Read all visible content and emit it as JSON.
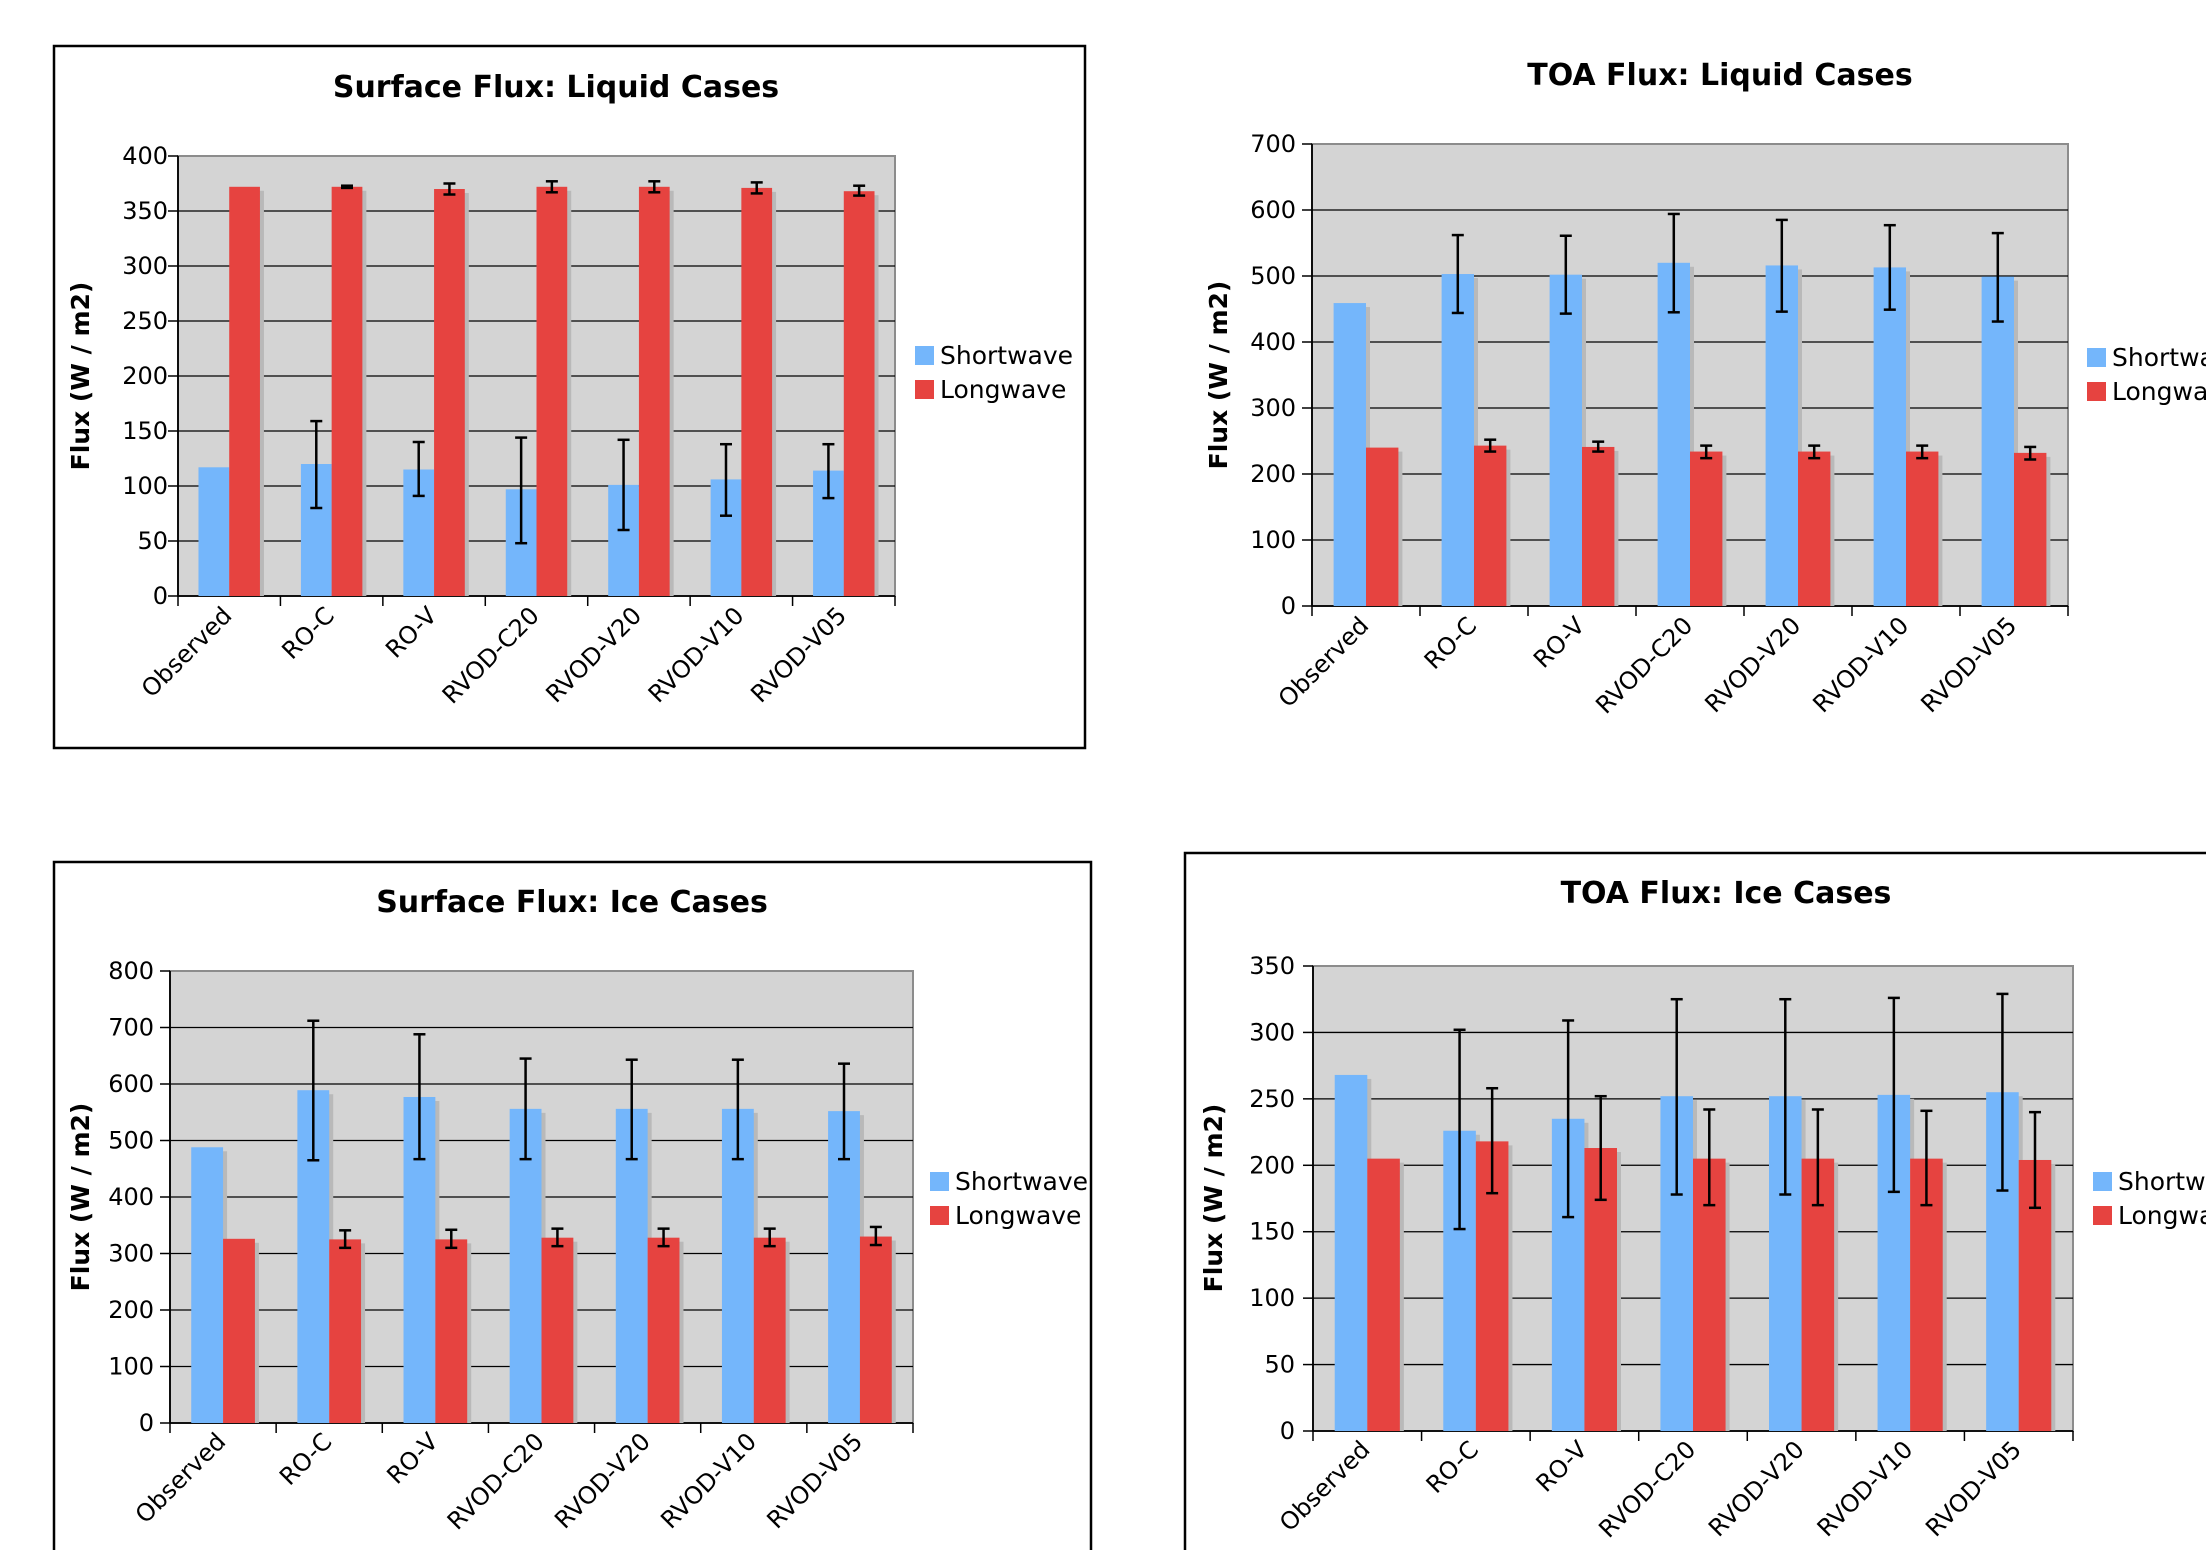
{
  "colors": {
    "shortwave": "#74b6fb",
    "longwave": "#e64340",
    "plot_bg": "#d4d4d4",
    "shadow": "#b9b9b9",
    "grid": "#000000"
  },
  "chart_data": [
    {
      "type": "bar",
      "title": "Surface Flux: Liquid Cases",
      "ylabel": "Flux (W / m2)",
      "xlabel": "",
      "ylim": [
        0,
        400
      ],
      "yticks": [
        0,
        50,
        100,
        150,
        200,
        250,
        300,
        350,
        400
      ],
      "categories": [
        "Observed",
        "RO-C",
        "RO-V",
        "RVOD-C20",
        "RVOD-V20",
        "RVOD-V10",
        "RVOD-V05"
      ],
      "legend": "right",
      "grid": true,
      "series": [
        {
          "name": "Shortwave",
          "values": [
            117,
            120,
            115,
            97,
            101,
            106,
            114
          ],
          "err": [
            null,
            [
              80,
              159
            ],
            [
              91,
              140
            ],
            [
              48,
              144
            ],
            [
              60,
              142
            ],
            [
              73,
              138
            ],
            [
              89,
              138
            ]
          ]
        },
        {
          "name": "Longwave",
          "values": [
            372,
            372,
            370,
            372,
            372,
            371,
            368
          ],
          "err": [
            null,
            [
              371,
              373
            ],
            [
              365,
              375
            ],
            [
              367,
              377
            ],
            [
              367,
              377
            ],
            [
              366,
              376
            ],
            [
              364,
              373
            ]
          ]
        }
      ]
    },
    {
      "type": "bar",
      "title": "TOA Flux: Liquid Cases",
      "ylabel": "Flux (W / m2)",
      "xlabel": "",
      "ylim": [
        0,
        700
      ],
      "yticks": [
        0,
        100,
        200,
        300,
        400,
        500,
        600,
        700
      ],
      "categories": [
        "Observed",
        "RO-C",
        "RO-V",
        "RVOD-C20",
        "RVOD-V20",
        "RVOD-V10",
        "RVOD-V05"
      ],
      "legend": "right",
      "grid": true,
      "series": [
        {
          "name": "Shortwave",
          "values": [
            459,
            503,
            502,
            520,
            516,
            513,
            499
          ],
          "err": [
            null,
            [
              444,
              562
            ],
            [
              443,
              561
            ],
            [
              445,
              594
            ],
            [
              446,
              585
            ],
            [
              449,
              577
            ],
            [
              431,
              565
            ]
          ]
        },
        {
          "name": "Longwave",
          "values": [
            240,
            243,
            241,
            234,
            234,
            234,
            232
          ],
          "err": [
            null,
            [
              234,
              252
            ],
            [
              234,
              249
            ],
            [
              224,
              243
            ],
            [
              224,
              243
            ],
            [
              224,
              243
            ],
            [
              222,
              241
            ]
          ]
        }
      ]
    },
    {
      "type": "bar",
      "title": "Surface Flux: Ice Cases",
      "ylabel": "Flux (W / m2)",
      "xlabel": "",
      "ylim": [
        0,
        800
      ],
      "yticks": [
        0,
        100,
        200,
        300,
        400,
        500,
        600,
        700,
        800
      ],
      "categories": [
        "Observed",
        "RO-C",
        "RO-V",
        "RVOD-C20",
        "RVOD-V20",
        "RVOD-V10",
        "RVOD-V05"
      ],
      "legend": "right",
      "grid": true,
      "series": [
        {
          "name": "Shortwave",
          "values": [
            488,
            589,
            577,
            556,
            556,
            556,
            552
          ],
          "err": [
            null,
            [
              465,
              712
            ],
            [
              467,
              688
            ],
            [
              467,
              645
            ],
            [
              467,
              643
            ],
            [
              467,
              643
            ],
            [
              467,
              636
            ]
          ]
        },
        {
          "name": "Longwave",
          "values": [
            326,
            325,
            325,
            328,
            328,
            328,
            330
          ],
          "err": [
            null,
            [
              310,
              341
            ],
            [
              310,
              342
            ],
            [
              313,
              344
            ],
            [
              313,
              344
            ],
            [
              313,
              344
            ],
            [
              315,
              347
            ]
          ]
        }
      ]
    },
    {
      "type": "bar",
      "title": "TOA Flux: Ice Cases",
      "ylabel": "Flux (W / m2)",
      "xlabel": "",
      "ylim": [
        0,
        350
      ],
      "yticks": [
        0,
        50,
        100,
        150,
        200,
        250,
        300,
        350
      ],
      "categories": [
        "Observed",
        "RO-C",
        "RO-V",
        "RVOD-C20",
        "RVOD-V20",
        "RVOD-V10",
        "RVOD-V05"
      ],
      "legend": "right",
      "grid": true,
      "series": [
        {
          "name": "Shortwave",
          "values": [
            268,
            226,
            235,
            252,
            252,
            253,
            255
          ],
          "err": [
            null,
            [
              152,
              302
            ],
            [
              161,
              309
            ],
            [
              178,
              325
            ],
            [
              178,
              325
            ],
            [
              180,
              326
            ],
            [
              181,
              329
            ]
          ]
        },
        {
          "name": "Longwave",
          "values": [
            205,
            218,
            213,
            205,
            205,
            205,
            204
          ],
          "err": [
            null,
            [
              179,
              258
            ],
            [
              174,
              252
            ],
            [
              170,
              242
            ],
            [
              170,
              242
            ],
            [
              170,
              241
            ],
            [
              168,
              240
            ]
          ]
        }
      ]
    }
  ]
}
